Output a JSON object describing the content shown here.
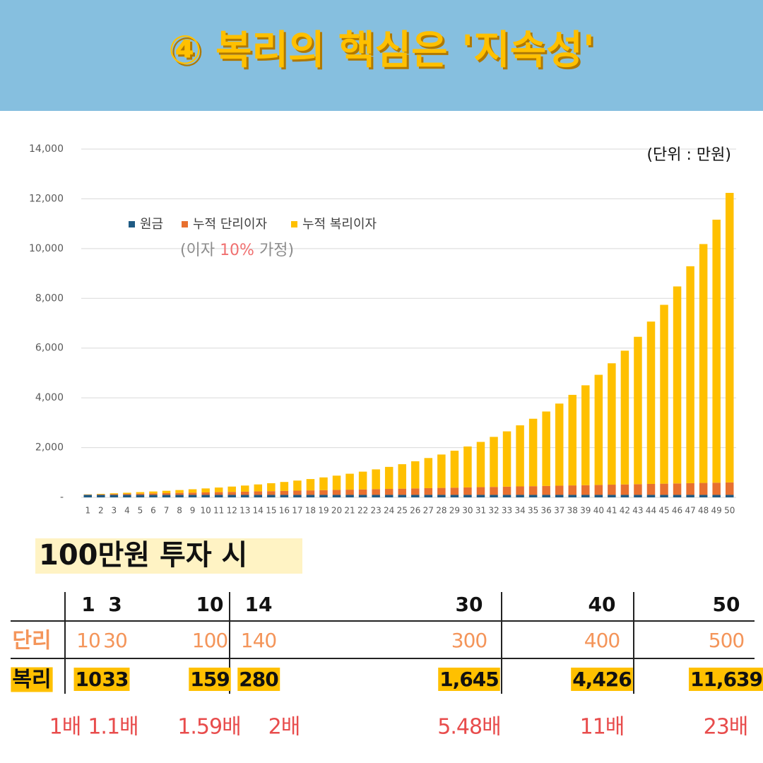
{
  "header": {
    "title": "④ 복리의 핵심은 '지속성'"
  },
  "chart_data": {
    "type": "bar",
    "stacked": true,
    "unit_label": "(단위 : 만원)",
    "note_parts": [
      "(이자 ",
      "10%",
      " 가정)"
    ],
    "categories": [
      "1",
      "2",
      "3",
      "4",
      "5",
      "6",
      "7",
      "8",
      "9",
      "10",
      "11",
      "12",
      "13",
      "14",
      "15",
      "16",
      "17",
      "18",
      "19",
      "20",
      "21",
      "22",
      "23",
      "24",
      "25",
      "26",
      "27",
      "28",
      "29",
      "30",
      "31",
      "32",
      "33",
      "34",
      "35",
      "36",
      "37",
      "38",
      "39",
      "40",
      "41",
      "42",
      "43",
      "44",
      "45",
      "46",
      "47",
      "48",
      "49",
      "50"
    ],
    "series": [
      {
        "name": "원금",
        "color": "#1f5b84",
        "values": [
          100,
          100,
          100,
          100,
          100,
          100,
          100,
          100,
          100,
          100,
          100,
          100,
          100,
          100,
          100,
          100,
          100,
          100,
          100,
          100,
          100,
          100,
          100,
          100,
          100,
          100,
          100,
          100,
          100,
          100,
          100,
          100,
          100,
          100,
          100,
          100,
          100,
          100,
          100,
          100,
          100,
          100,
          100,
          100,
          100,
          100,
          100,
          100,
          100,
          100
        ]
      },
      {
        "name": "누적 단리이자",
        "color": "#e8702f",
        "values": [
          10,
          20,
          30,
          40,
          50,
          60,
          70,
          80,
          90,
          100,
          110,
          120,
          130,
          140,
          150,
          160,
          170,
          180,
          190,
          200,
          210,
          220,
          230,
          240,
          250,
          260,
          270,
          280,
          290,
          300,
          310,
          320,
          330,
          340,
          350,
          360,
          370,
          380,
          390,
          400,
          410,
          420,
          430,
          440,
          450,
          460,
          470,
          480,
          490,
          500
        ]
      },
      {
        "name": "누적 복리이자",
        "color": "#ffc000",
        "values": [
          10,
          21,
          33,
          46,
          61,
          77,
          95,
          114,
          136,
          159,
          185,
          214,
          245,
          280,
          318,
          359,
          405,
          456,
          512,
          573,
          640,
          714,
          795,
          885,
          983,
          1092,
          1211,
          1342,
          1486,
          1645,
          1819,
          2011,
          2223,
          2455,
          2710,
          2991,
          3300,
          3640,
          4014,
          4426,
          4879,
          5376,
          5924,
          6526,
          7189,
          7918,
          8720,
          9602,
          10572,
          11639
        ]
      }
    ],
    "ylim": [
      0,
      14000
    ],
    "yticks": [
      {
        "value": 0,
        "label": "-"
      },
      {
        "value": 2000,
        "label": "2,000"
      },
      {
        "value": 4000,
        "label": "4,000"
      },
      {
        "value": 6000,
        "label": "6,000"
      },
      {
        "value": 8000,
        "label": "8,000"
      },
      {
        "value": 10000,
        "label": "10,000"
      },
      {
        "value": 12000,
        "label": "12,000"
      },
      {
        "value": 14000,
        "label": "14,000"
      }
    ],
    "grid": true
  },
  "table": {
    "subtitle": "100만원 투자 시",
    "years": [
      1,
      3,
      10,
      14,
      30,
      40,
      50
    ],
    "rows": [
      {
        "label": "단리",
        "values": [
          "10",
          "30",
          "100",
          "140",
          "300",
          "400",
          "500"
        ]
      },
      {
        "label": "복리",
        "values": [
          "10",
          "33",
          "159",
          "280",
          "1,645",
          "4,426",
          "11,639"
        ]
      }
    ],
    "ratios": [
      "1배",
      "1.1배",
      "1.59배",
      "2배",
      "5.48배",
      "11배",
      "23배"
    ]
  }
}
